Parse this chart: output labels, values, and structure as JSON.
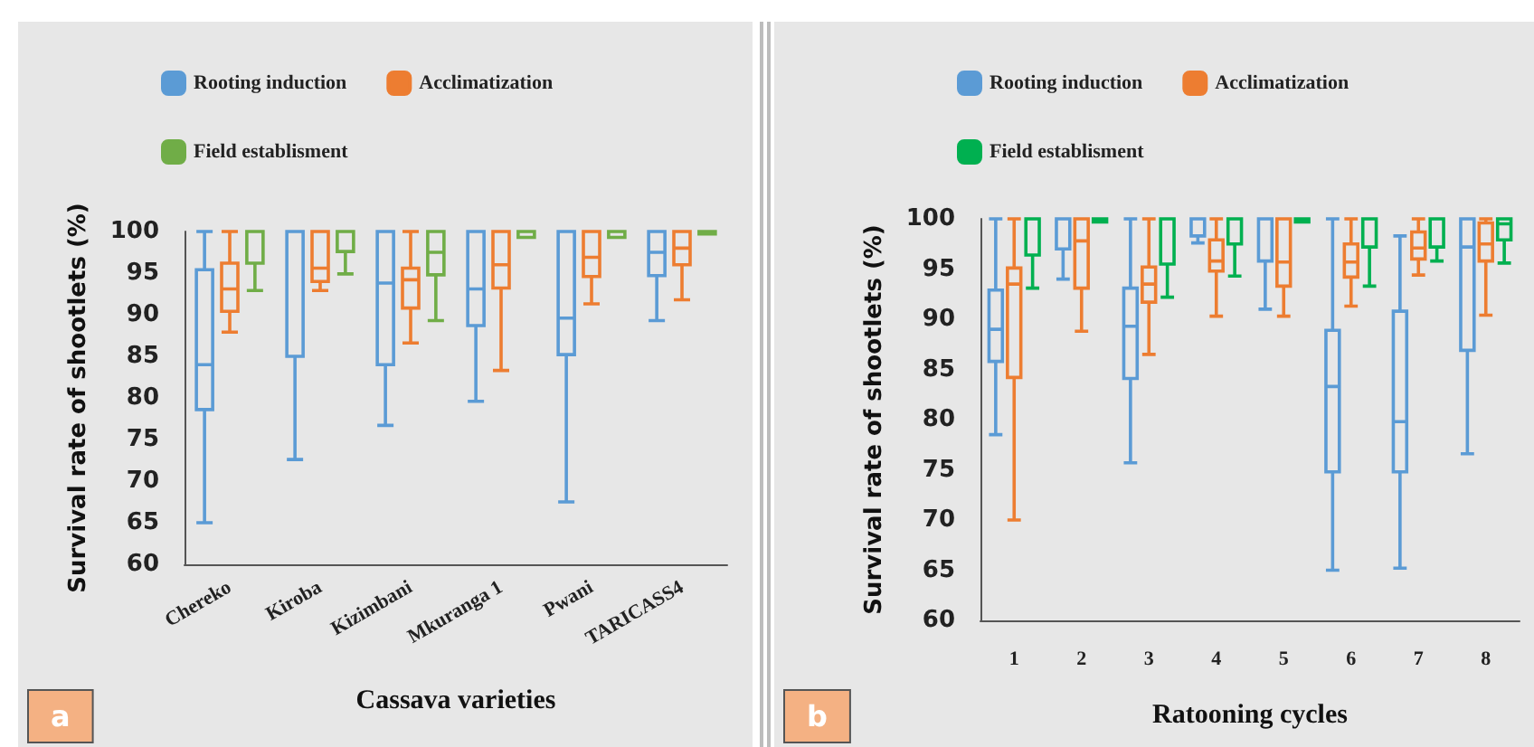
{
  "chart_data": [
    {
      "type": "box",
      "categories": [
        "Chereko",
        "Kiroba",
        "Kizimbani",
        "Mkuranga 1",
        "Pwani",
        "TARICASS4"
      ],
      "xlabel": "Cassava varieties",
      "ylabel": "Survival rate of shootlets (%)",
      "ylim": [
        60,
        100
      ],
      "yticks": [
        60,
        65,
        70,
        75,
        80,
        85,
        90,
        95,
        100
      ],
      "grid": false,
      "legend": "top",
      "annotations": [
        "a"
      ],
      "series": [
        {
          "name": "Rooting induction",
          "color": "#5b9bd5",
          "boxes": [
            {
              "low": 65,
              "q1": 78.6,
              "median": 84,
              "q3": 95.4,
              "high": 100
            },
            {
              "low": 72.6,
              "q1": 85,
              "median": 100,
              "q3": 100,
              "high": 100
            },
            {
              "low": 76.7,
              "q1": 84,
              "median": 93.8,
              "q3": 100,
              "high": 100
            },
            {
              "low": 79.6,
              "q1": 88.7,
              "median": 93.1,
              "q3": 100,
              "high": 100
            },
            {
              "low": 67.5,
              "q1": 85.2,
              "median": 89.6,
              "q3": 100,
              "high": 100
            },
            {
              "low": 89.3,
              "q1": 94.7,
              "median": 97.5,
              "q3": 100,
              "high": 100
            }
          ]
        },
        {
          "name": "Acclimatization",
          "color": "#ed7d31",
          "boxes": [
            {
              "low": 87.9,
              "q1": 90.4,
              "median": 93.1,
              "q3": 96.2,
              "high": 100
            },
            {
              "low": 92.9,
              "q1": 94,
              "median": 95.6,
              "q3": 100,
              "high": 100
            },
            {
              "low": 86.6,
              "q1": 90.8,
              "median": 94.2,
              "q3": 95.6,
              "high": 100
            },
            {
              "low": 83.3,
              "q1": 93.2,
              "median": 96,
              "q3": 100,
              "high": 100
            },
            {
              "low": 91.3,
              "q1": 94.6,
              "median": 96.9,
              "q3": 100,
              "high": 100
            },
            {
              "low": 91.8,
              "q1": 96,
              "median": 98,
              "q3": 100,
              "high": 100
            }
          ]
        },
        {
          "name": "Field establisment",
          "color": "#70ad47",
          "boxes": [
            {
              "low": 92.9,
              "q1": 96.2,
              "median": 100,
              "q3": 100,
              "high": 100
            },
            {
              "low": 94.9,
              "q1": 97.6,
              "median": 100,
              "q3": 100,
              "high": 100
            },
            {
              "low": 89.3,
              "q1": 94.8,
              "median": 97.5,
              "q3": 100,
              "high": 100
            },
            {
              "low": 99.3,
              "q1": 99.3,
              "median": 100,
              "q3": 100,
              "high": 100
            },
            {
              "low": 99.3,
              "q1": 99.3,
              "median": 100,
              "q3": 100,
              "high": 100
            },
            {
              "low": 99.7,
              "q1": 99.7,
              "median": 100,
              "q3": 100,
              "high": 100
            }
          ]
        }
      ]
    },
    {
      "type": "box",
      "categories": [
        "1",
        "2",
        "3",
        "4",
        "5",
        "6",
        "7",
        "8"
      ],
      "xlabel": "Ratooning cycles",
      "ylabel": "Survival rate of shootlets (%)",
      "ylim": [
        60,
        100
      ],
      "yticks": [
        60,
        65,
        70,
        75,
        80,
        85,
        90,
        95,
        100
      ],
      "grid": false,
      "legend": "top",
      "annotations": [
        "b"
      ],
      "series": [
        {
          "name": "Rooting induction",
          "color": "#5b9bd5",
          "boxes": [
            {
              "low": 78.5,
              "q1": 85.8,
              "median": 89,
              "q3": 92.9,
              "high": 100
            },
            {
              "low": 94,
              "q1": 97,
              "median": 100,
              "q3": 100,
              "high": 100
            },
            {
              "low": 75.7,
              "q1": 84.1,
              "median": 89.3,
              "q3": 93.1,
              "high": 100
            },
            {
              "low": 97.6,
              "q1": 98.3,
              "median": 100,
              "q3": 100,
              "high": 100
            },
            {
              "low": 91,
              "q1": 95.8,
              "median": 100,
              "q3": 100,
              "high": 100
            },
            {
              "low": 65,
              "q1": 74.8,
              "median": 83.3,
              "q3": 88.9,
              "high": 100
            },
            {
              "low": 65.2,
              "q1": 74.8,
              "median": 79.8,
              "q3": 90.8,
              "high": 98.3
            },
            {
              "low": 76.6,
              "q1": 86.9,
              "median": 97.2,
              "q3": 100,
              "high": 100
            }
          ]
        },
        {
          "name": "Acclimatization",
          "color": "#ed7d31",
          "boxes": [
            {
              "low": 70,
              "q1": 84.2,
              "median": 93.5,
              "q3": 95.1,
              "high": 100
            },
            {
              "low": 88.8,
              "q1": 93.1,
              "median": 97.8,
              "q3": 100,
              "high": 100
            },
            {
              "low": 86.5,
              "q1": 91.7,
              "median": 93.5,
              "q3": 95.2,
              "high": 100
            },
            {
              "low": 90.3,
              "q1": 94.8,
              "median": 95.8,
              "q3": 97.9,
              "high": 100
            },
            {
              "low": 90.3,
              "q1": 93.3,
              "median": 95.7,
              "q3": 100,
              "high": 100
            },
            {
              "low": 91.3,
              "q1": 94.2,
              "median": 95.7,
              "q3": 97.5,
              "high": 100
            },
            {
              "low": 94.4,
              "q1": 96,
              "median": 97.1,
              "q3": 98.7,
              "high": 100
            },
            {
              "low": 90.4,
              "q1": 95.8,
              "median": 97.5,
              "q3": 99.6,
              "high": 100
            }
          ]
        },
        {
          "name": "Field establisment",
          "color": "#00b050",
          "boxes": [
            {
              "low": 93.1,
              "q1": 96.4,
              "median": 100,
              "q3": 100,
              "high": 100
            },
            {
              "low": 99.7,
              "q1": 99.7,
              "median": 100,
              "q3": 100,
              "high": 100
            },
            {
              "low": 92.2,
              "q1": 95.5,
              "median": 100,
              "q3": 100,
              "high": 100
            },
            {
              "low": 94.3,
              "q1": 97.5,
              "median": 100,
              "q3": 100,
              "high": 100
            },
            {
              "low": 99.7,
              "q1": 99.7,
              "median": 100,
              "q3": 100,
              "high": 100
            },
            {
              "low": 93.3,
              "q1": 97.2,
              "median": 100,
              "q3": 100,
              "high": 100
            },
            {
              "low": 95.8,
              "q1": 97.2,
              "median": 100,
              "q3": 100,
              "high": 100
            },
            {
              "low": 95.6,
              "q1": 97.9,
              "median": 99.5,
              "q3": 100,
              "high": 100
            }
          ]
        }
      ]
    }
  ]
}
